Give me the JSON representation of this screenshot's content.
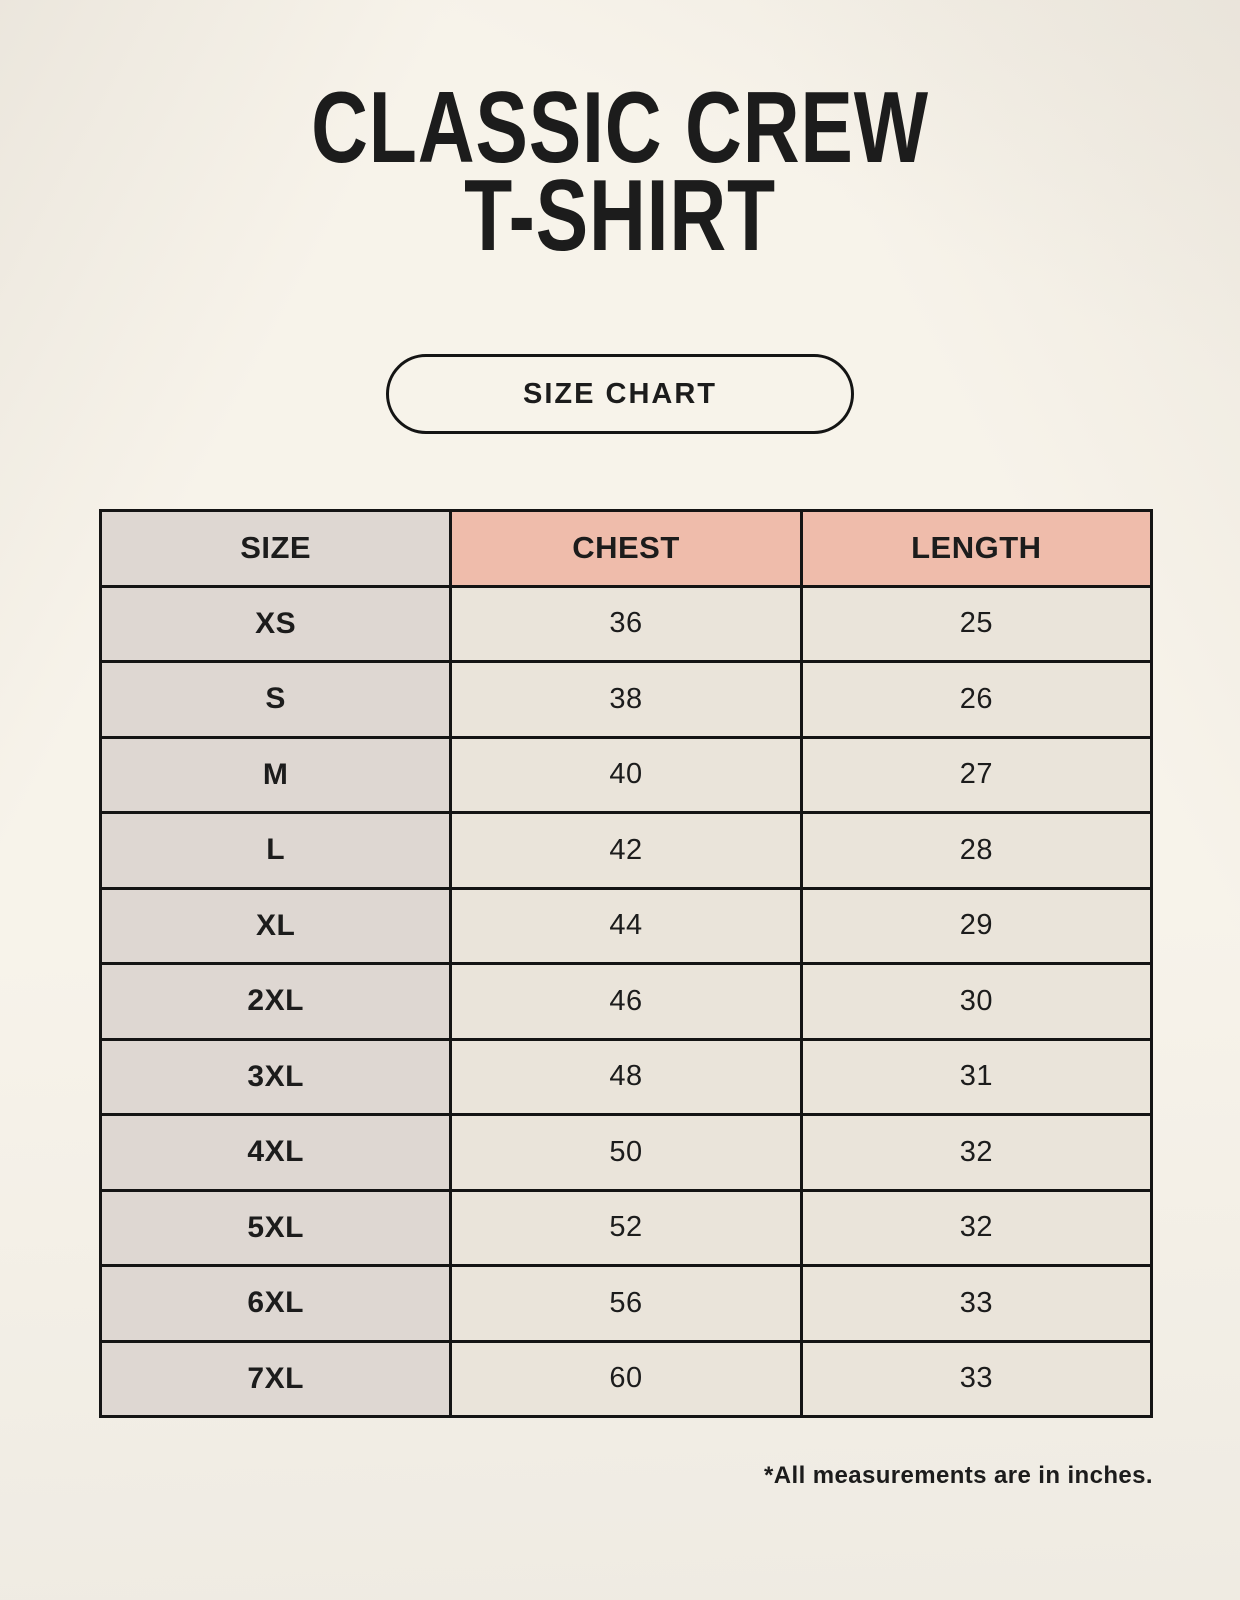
{
  "page": {
    "title_lines": [
      "CLASSIC CREW",
      "T-SHIRT"
    ],
    "button_label": "SIZE CHART",
    "footnote": "*All measurements are in inches."
  },
  "colors": {
    "background": "#f7f3ea",
    "header_accent": "#efbcab",
    "size_column": "#ded7d2",
    "cell": "#eae4da",
    "border": "#141414",
    "text": "#1c1c1c"
  },
  "chart_data": {
    "type": "table",
    "title": "CLASSIC CREW T-SHIRT",
    "subtitle": "SIZE CHART",
    "columns": [
      "SIZE",
      "CHEST",
      "LENGTH"
    ],
    "rows": [
      [
        "XS",
        "36",
        "25"
      ],
      [
        "S",
        "38",
        "26"
      ],
      [
        "M",
        "40",
        "27"
      ],
      [
        "L",
        "42",
        "28"
      ],
      [
        "XL",
        "44",
        "29"
      ],
      [
        "2XL",
        "46",
        "30"
      ],
      [
        "3XL",
        "48",
        "31"
      ],
      [
        "4XL",
        "50",
        "32"
      ],
      [
        "5XL",
        "52",
        "32"
      ],
      [
        "6XL",
        "56",
        "33"
      ],
      [
        "7XL",
        "60",
        "33"
      ]
    ],
    "units": "inches",
    "footnote": "*All measurements are in inches.",
    "layout": {
      "grid": true,
      "header_row": true
    }
  }
}
